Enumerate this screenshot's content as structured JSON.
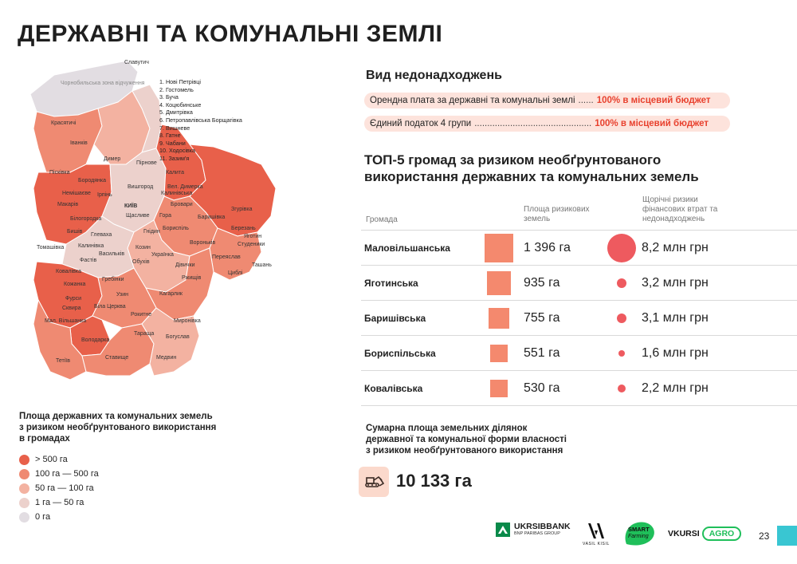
{
  "page": {
    "title": "ДЕРЖАВНІ ТА КОМУНАЛЬНІ ЗЕМЛІ",
    "number": "23"
  },
  "colors": {
    "level_gt_500": "#e8604a",
    "level_100_500": "#ef8a72",
    "level_50_100": "#f3b2a1",
    "level_1_50": "#ecd1cc",
    "level_0": "#e2dde2",
    "accent_red": "#e8412e",
    "pill_bg": "#fde3dc",
    "square": "#f4896e",
    "circle": "#ee5a5f",
    "teal": "#39c6d2"
  },
  "map": {
    "zone_label": "Чорнобильська зона відчуження",
    "city_labels": {
      "slavutych": "Славутич",
      "krasiatychi": "Красятичі",
      "ivankiv": "Іванків",
      "dymer": "Димер",
      "pirnove": "Пірнове",
      "piskivka": "Пісківка",
      "borodianka": "Бородянка",
      "nemishaieve": "Немішаєве",
      "makariv": "Макарів",
      "bilohorodka": "Білогородка",
      "bishiv": "Бишів",
      "hlevakha": "Глеваха",
      "tomashivka": "Томашівка",
      "kalynivka": "Калинівка",
      "vasylkiv": "Васильків",
      "fastiv": "Фастів",
      "kovalivka": "Ковалівка",
      "kozhanka": "Кожанка",
      "hrebinky": "Гребінки",
      "fursy": "Фурси",
      "skvyra": "Сквира",
      "bila_tserkva": "Біла Церква",
      "uzyn": "Узин",
      "mal_vilshanka": "Мал. Вільшанка",
      "volodarka": "Володарка",
      "tetiiv": "Тетіїв",
      "stavyshche": "Ставище",
      "rokytne": "Рокитне",
      "tarashcha": "Тараща",
      "medvyn": "Медвин",
      "bohuslav": "Богуслав",
      "myronivka": "Миронівка",
      "kaharlyk": "Кагарлик",
      "obukhiv": "Обухів",
      "kozyn": "Козин",
      "ukrainka": "Українка",
      "divychky": "Дівички",
      "rzhyshchiv": "Ржищів",
      "pereiaslav": "Переяслав",
      "tsybli": "Циблі",
      "tashan": "Ташань",
      "studenyky": "Студеники",
      "yahotyn": "Яготин",
      "berezan": "Березань",
      "zghurivka": "Згурівка",
      "baryshivka": "Баришівка",
      "boryspil": "Бориспіль",
      "voronkiv": "Вороньків",
      "hnidyn": "Гнідин",
      "hora": "Гора",
      "brovary": "Бровари",
      "kalynivka_n": "Калинівська",
      "vel_dymerka": "Вел. Димерка",
      "kalyta": "Калита",
      "vyshhorod": "Вишгород",
      "kyiv": "КИЇВ",
      "irpin": "Ірпінь",
      "shchaslyve": "Щасливе"
    },
    "legend_list": [
      "1. Нові Петрівці",
      "2. Гостомель",
      "3. Буча",
      "4. Коцюбинське",
      "5. Дмитрівка",
      "6. Петропавлівська Борщагівка",
      "7. Вишневе",
      "8. Гатне",
      "9. Чабани",
      "10. Ходосівка",
      "11. Зазим'я"
    ]
  },
  "legend": {
    "title_lines": [
      "Площа державних та комунальних земель",
      "з ризиком необґрунтованого використання",
      "в громадах"
    ],
    "items": [
      {
        "label": "> 500 га"
      },
      {
        "label": "100 га — 500 га"
      },
      {
        "label": "50 га — 100 га"
      },
      {
        "label": "1 га — 50 га"
      },
      {
        "label": "0 га"
      }
    ]
  },
  "types": {
    "title": "Вид недонадходжень",
    "rows": [
      {
        "label": "Орендна плата за державні та комунальні землі",
        "dots": "......",
        "value": "100% в місцевий бюджет"
      },
      {
        "label": "Єдиний податок 4 групи",
        "dots": "..............................................",
        "value": "100% в місцевий бюджет"
      }
    ]
  },
  "top5": {
    "title_lines": [
      "ТОП-5 громад за ризиком необґрунтованого",
      "використання державних та комунальних земель"
    ],
    "headers": {
      "hromada": "Громада",
      "area_lines": [
        "Площа ризикових",
        "земель"
      ],
      "risk_lines": [
        "Щорічні ризики",
        "фінансових втрат та",
        "недонадходжень"
      ]
    },
    "rows": [
      {
        "name": "Маловільшанська",
        "area": "1 396 га",
        "area_value": 1396,
        "risk": "8,2 млн грн",
        "risk_value": 8.2
      },
      {
        "name": "Яготинська",
        "area": "935 га",
        "area_value": 935,
        "risk": "3,2 млн грн",
        "risk_value": 3.2
      },
      {
        "name": "Баришівська",
        "area": "755 га",
        "area_value": 755,
        "risk": "3,1 млн грн",
        "risk_value": 3.1
      },
      {
        "name": "Бориспільська",
        "area": "551 га",
        "area_value": 551,
        "risk": "1,6 млн грн",
        "risk_value": 1.6
      },
      {
        "name": "Ковалівська",
        "area": "530 га",
        "area_value": 530,
        "risk": "2,2 млн грн",
        "risk_value": 2.2
      }
    ]
  },
  "summary": {
    "title_lines": [
      "Сумарна площа земельних ділянок",
      "державної та комунальної форми власності",
      "з ризиком необґрунтованого використання"
    ],
    "value": "10 133 га",
    "icon": "bulldozer-icon"
  },
  "footer": {
    "ukrsib_name": "UKRSIBBANK",
    "ukrsib_sub": "BNP PARIBAS GROUP",
    "vasyl_kisil": "VASIL KISIL",
    "smart_line1": "SMART",
    "smart_line2": "Farming",
    "vkursi": "VKURSI",
    "agro": "AGRO"
  }
}
